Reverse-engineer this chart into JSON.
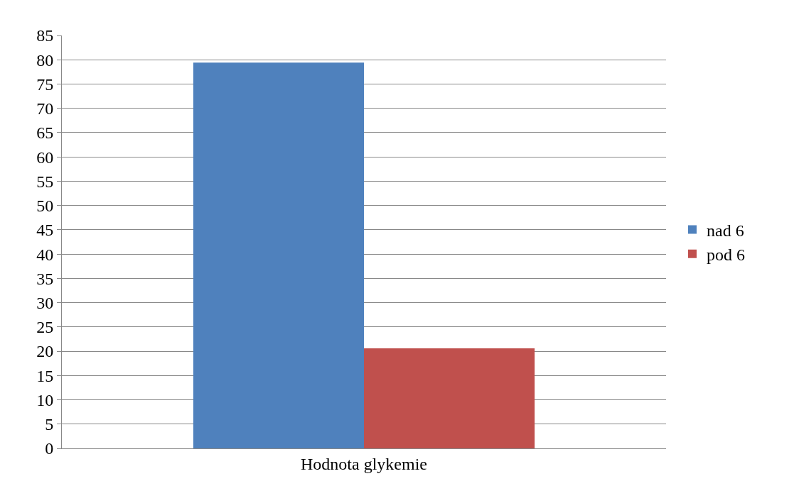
{
  "chart_data": {
    "type": "bar",
    "categories": [
      "Hodnota glykemie"
    ],
    "series": [
      {
        "name": "nad 6",
        "color": "#4f81bd",
        "values": [
          79.4
        ]
      },
      {
        "name": "pod 6",
        "color": "#c0504d",
        "values": [
          20.6
        ]
      }
    ],
    "ylim": [
      0,
      85
    ],
    "yticks": [
      0,
      5,
      10,
      15,
      20,
      25,
      30,
      35,
      40,
      45,
      50,
      55,
      60,
      65,
      70,
      75,
      80,
      85
    ],
    "grid": "y",
    "legend": "right"
  }
}
